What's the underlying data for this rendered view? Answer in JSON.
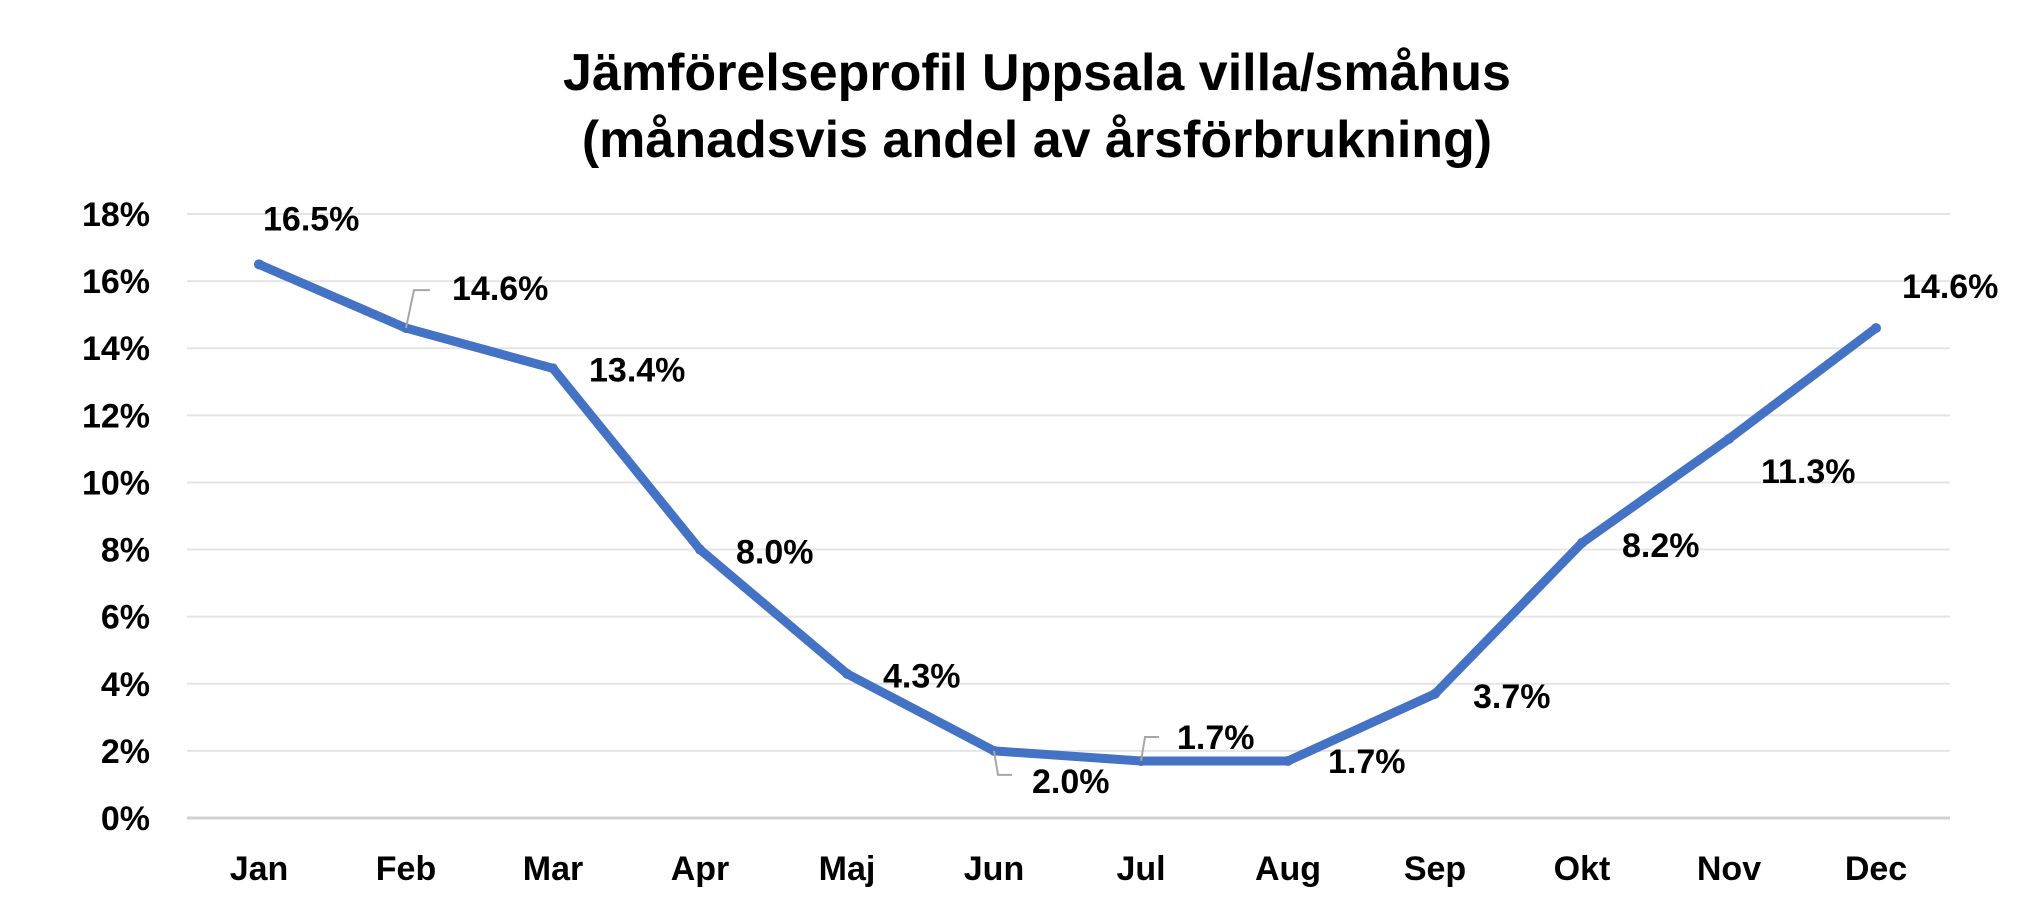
{
  "chart_data": {
    "type": "line",
    "title": "Jämförelseprofil Uppsala villa/småhus",
    "subtitle": "(månadsvis andel av årsförbrukning)",
    "categories": [
      "Jan",
      "Feb",
      "Mar",
      "Apr",
      "Maj",
      "Jun",
      "Jul",
      "Aug",
      "Sep",
      "Okt",
      "Nov",
      "Dec"
    ],
    "series": [
      {
        "values": [
          16.5,
          14.6,
          13.4,
          8.0,
          4.3,
          2.0,
          1.7,
          1.7,
          3.7,
          8.2,
          11.3,
          14.6
        ],
        "labels": [
          "16.5%",
          "14.6%",
          "13.4%",
          "8.0%",
          "4.3%",
          "2.0%",
          "1.7%",
          "1.7%",
          "3.7%",
          "8.2%",
          "11.3%",
          "14.6%"
        ]
      }
    ],
    "yticks": [
      "0%",
      "2%",
      "4%",
      "6%",
      "8%",
      "10%",
      "12%",
      "14%",
      "16%",
      "18%"
    ],
    "ylim": [
      0,
      18
    ],
    "grid": true,
    "legend": "none",
    "xlabel": "",
    "ylabel": ""
  },
  "colors": {
    "line": "#4472C4",
    "grid": "#E4E4E4",
    "axis": "#D0D0D0",
    "leader": "#A6A6A6",
    "text": "#000000"
  }
}
